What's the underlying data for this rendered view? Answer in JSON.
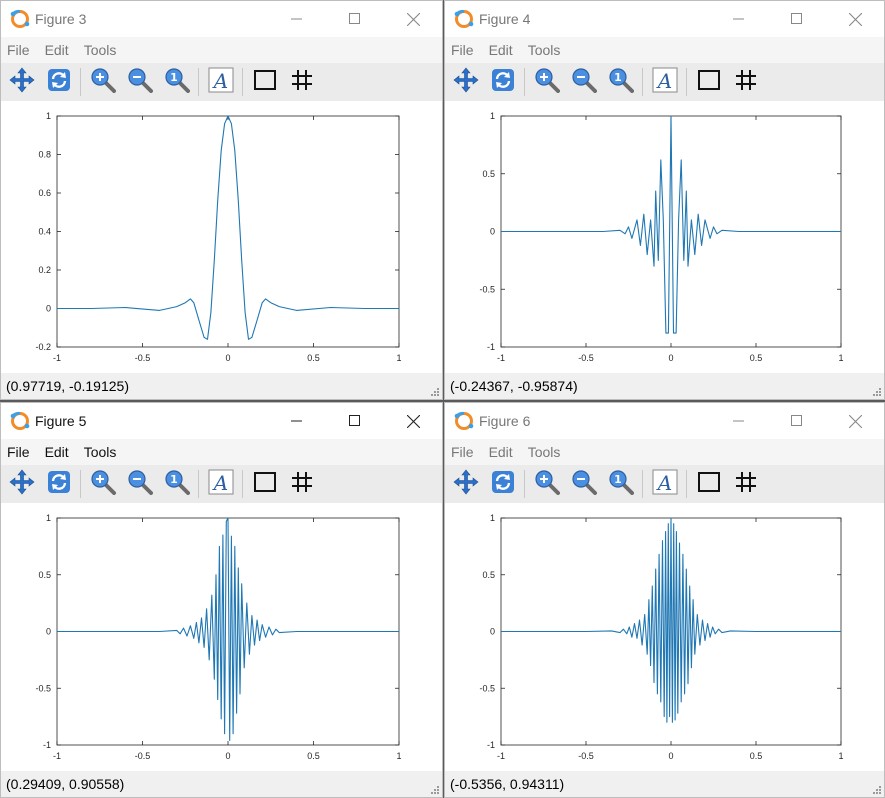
{
  "menus": [
    "File",
    "Edit",
    "Tools"
  ],
  "toolbar_icons": [
    "pan-icon",
    "rotate-icon",
    "zoom-in-icon",
    "zoom-out-icon",
    "zoom-reset-icon",
    "text-insert-icon",
    "axes-box-icon",
    "grid-icon"
  ],
  "colors": {
    "line": "#1f77b4",
    "background": "#ffffff",
    "chrome": "#f0f0f0"
  },
  "windows": [
    {
      "title": "Figure 3",
      "status": "(0.97719, -0.19125)",
      "active": false
    },
    {
      "title": "Figure 4",
      "status": "(-0.24367, -0.95874)",
      "active": false
    },
    {
      "title": "Figure 5",
      "status": "(0.29409, 0.90558)",
      "active": true
    },
    {
      "title": "Figure 6",
      "status": "(-0.5356, 0.94311)",
      "active": false
    }
  ],
  "chart_data": [
    {
      "type": "line",
      "title": "",
      "xlabel": "",
      "ylabel": "",
      "xlim": [
        -1,
        1
      ],
      "ylim": [
        -0.2,
        1
      ],
      "xticks": [
        "-1",
        "-0.5",
        "0",
        "0.5",
        "1"
      ],
      "yticks": [
        "-0.2",
        "0",
        "0.2",
        "0.4",
        "0.6",
        "0.8",
        "1"
      ],
      "grid": false,
      "series": [
        {
          "x": [
            -1,
            -0.8,
            -0.6,
            -0.4,
            -0.3,
            -0.25,
            -0.22,
            -0.2,
            -0.17,
            -0.14,
            -0.12,
            -0.1,
            -0.08,
            -0.06,
            -0.04,
            -0.02,
            0,
            0.02,
            0.04,
            0.06,
            0.08,
            0.1,
            0.12,
            0.14,
            0.17,
            0.2,
            0.22,
            0.25,
            0.3,
            0.4,
            0.6,
            0.8,
            1
          ],
          "y": [
            0,
            0,
            0.005,
            -0.01,
            0.01,
            0.03,
            0.05,
            0.03,
            -0.06,
            -0.15,
            -0.16,
            -0.02,
            0.25,
            0.56,
            0.82,
            0.96,
            1.0,
            0.96,
            0.82,
            0.56,
            0.25,
            -0.02,
            -0.16,
            -0.15,
            -0.06,
            0.03,
            0.05,
            0.03,
            0.01,
            -0.01,
            0.005,
            0,
            0
          ]
        }
      ]
    },
    {
      "type": "line",
      "title": "",
      "xlabel": "",
      "ylabel": "",
      "xlim": [
        -1,
        1
      ],
      "ylim": [
        -1,
        1
      ],
      "xticks": [
        "-1",
        "-0.5",
        "0",
        "0.5",
        "1"
      ],
      "yticks": [
        "-1",
        "-0.5",
        "0",
        "0.5",
        "1"
      ],
      "grid": false,
      "series": [
        {
          "x": [
            -1,
            -0.4,
            -0.3,
            -0.27,
            -0.25,
            -0.23,
            -0.2,
            -0.18,
            -0.16,
            -0.14,
            -0.12,
            -0.1,
            -0.09,
            -0.075,
            -0.06,
            -0.045,
            -0.03,
            -0.015,
            0,
            0.015,
            0.03,
            0.045,
            0.06,
            0.075,
            0.09,
            0.1,
            0.12,
            0.14,
            0.16,
            0.18,
            0.2,
            0.23,
            0.25,
            0.27,
            0.3,
            0.4,
            1
          ],
          "y": [
            0,
            0,
            0.01,
            -0.02,
            0.04,
            -0.06,
            0.1,
            -0.12,
            0.15,
            -0.2,
            0.1,
            -0.3,
            0.35,
            -0.25,
            0.62,
            0.1,
            -0.88,
            -0.88,
            1.0,
            -0.88,
            -0.88,
            0.1,
            0.62,
            -0.25,
            0.35,
            -0.3,
            0.1,
            -0.2,
            0.15,
            -0.12,
            0.1,
            -0.06,
            0.04,
            -0.02,
            0.01,
            0,
            0
          ]
        }
      ]
    },
    {
      "type": "line",
      "title": "",
      "xlabel": "",
      "ylabel": "",
      "xlim": [
        -1,
        1
      ],
      "ylim": [
        -1,
        1
      ],
      "xticks": [
        "-1",
        "-0.5",
        "0",
        "0.5",
        "1"
      ],
      "yticks": [
        "-1",
        "-0.5",
        "0",
        "0.5",
        "1"
      ],
      "grid": false,
      "series": [
        {
          "x": [
            -1,
            -0.6,
            -0.4,
            -0.3,
            -0.28,
            -0.26,
            -0.24,
            -0.22,
            -0.2,
            -0.185,
            -0.17,
            -0.155,
            -0.14,
            -0.125,
            -0.11,
            -0.095,
            -0.08,
            -0.07,
            -0.06,
            -0.05,
            -0.04,
            -0.03,
            -0.02,
            -0.01,
            0,
            0.01,
            0.02,
            0.03,
            0.04,
            0.05,
            0.06,
            0.07,
            0.08,
            0.095,
            0.11,
            0.125,
            0.14,
            0.155,
            0.17,
            0.185,
            0.2,
            0.22,
            0.24,
            0.26,
            0.28,
            0.3,
            0.4,
            0.6,
            1
          ],
          "y": [
            0,
            0,
            0,
            0.01,
            -0.02,
            0.03,
            -0.04,
            0.05,
            -0.06,
            0.08,
            -0.1,
            0.12,
            -0.14,
            0.2,
            -0.25,
            0.32,
            -0.42,
            0.5,
            -0.6,
            0.75,
            -0.77,
            0.85,
            -0.9,
            0.97,
            1.0,
            -0.96,
            0.84,
            -0.9,
            0.75,
            -0.72,
            0.56,
            -0.55,
            0.42,
            -0.32,
            0.25,
            -0.2,
            0.14,
            -0.12,
            0.1,
            -0.08,
            0.06,
            -0.05,
            0.04,
            -0.03,
            0.02,
            -0.01,
            0,
            0,
            0
          ]
        }
      ]
    },
    {
      "type": "line",
      "title": "",
      "xlabel": "",
      "ylabel": "",
      "xlim": [
        -1,
        1
      ],
      "ylim": [
        -1,
        1
      ],
      "xticks": [
        "-1",
        "-0.5",
        "0",
        "0.5",
        "1"
      ],
      "yticks": [
        "-1",
        "-0.5",
        "0",
        "0.5",
        "1"
      ],
      "grid": false,
      "series": [
        {
          "x": [
            -1,
            -0.5,
            -0.35,
            -0.3,
            -0.28,
            -0.26,
            -0.245,
            -0.23,
            -0.215,
            -0.2,
            -0.185,
            -0.17,
            -0.155,
            -0.14,
            -0.13,
            -0.12,
            -0.11,
            -0.1,
            -0.09,
            -0.08,
            -0.07,
            -0.06,
            -0.05,
            -0.04,
            -0.032,
            -0.024,
            -0.016,
            -0.008,
            0,
            0.008,
            0.016,
            0.024,
            0.032,
            0.04,
            0.05,
            0.06,
            0.07,
            0.08,
            0.09,
            0.1,
            0.11,
            0.12,
            0.13,
            0.14,
            0.155,
            0.17,
            0.185,
            0.2,
            0.215,
            0.23,
            0.245,
            0.26,
            0.28,
            0.3,
            0.35,
            0.5,
            1
          ],
          "y": [
            0,
            0,
            0.005,
            -0.01,
            0.02,
            -0.02,
            0.04,
            -0.05,
            0.07,
            -0.06,
            0.1,
            -0.12,
            0.15,
            -0.2,
            0.28,
            -0.3,
            0.4,
            -0.45,
            0.55,
            -0.55,
            0.68,
            -0.62,
            0.8,
            -0.75,
            0.88,
            -0.8,
            0.95,
            -0.75,
            1.0,
            -0.8,
            0.95,
            -0.78,
            0.88,
            -0.72,
            0.78,
            -0.62,
            0.68,
            -0.55,
            0.55,
            -0.46,
            0.4,
            -0.32,
            0.28,
            -0.2,
            0.15,
            -0.12,
            0.1,
            -0.08,
            0.07,
            -0.05,
            0.04,
            -0.02,
            0.02,
            -0.01,
            0.005,
            0,
            0
          ]
        }
      ]
    }
  ]
}
